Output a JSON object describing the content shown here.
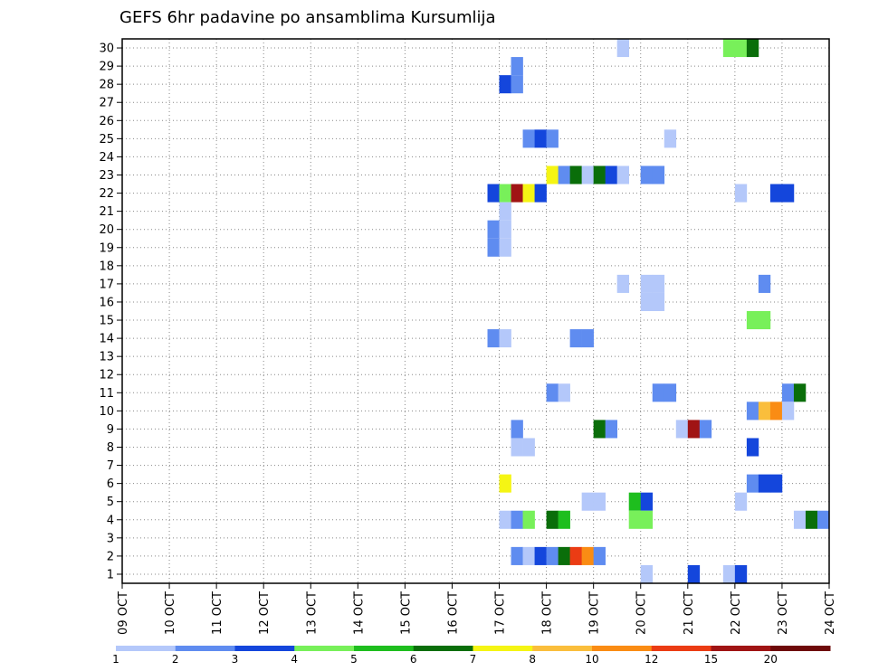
{
  "chart_data": {
    "type": "heatmap",
    "title": "GEFS 6hr padavine po ansamblima Kursumlija",
    "xlabel": "",
    "ylabel": "",
    "x_ticks": [
      "09 OCT",
      "10 OCT",
      "11 OCT",
      "12 OCT",
      "13 OCT",
      "14 OCT",
      "15 OCT",
      "16 OCT",
      "17 OCT",
      "18 OCT",
      "19 OCT",
      "20 OCT",
      "21 OCT",
      "22 OCT",
      "23 OCT",
      "24 OCT"
    ],
    "x_range_days": [
      9,
      24
    ],
    "step_hours": 6,
    "ensemble_members": [
      "1",
      "2",
      "3",
      "4",
      "5",
      "6",
      "7",
      "8",
      "9",
      "10",
      "11",
      "12",
      "13",
      "14",
      "15",
      "16",
      "17",
      "18",
      "19",
      "20",
      "21",
      "22",
      "23",
      "24",
      "25",
      "26",
      "27",
      "28",
      "29",
      "30"
    ],
    "ylim": [
      0.5,
      30.5
    ],
    "grid": true,
    "legend": {
      "placement": "bottom",
      "labels": [
        "1",
        "2",
        "3",
        "4",
        "5",
        "6",
        "7",
        "8",
        "10",
        "12",
        "15",
        "20"
      ],
      "colors": [
        "#b4c8fa",
        "#5f8cf0",
        "#1446dc",
        "#78f05a",
        "#1ebe1e",
        "#0a6e0a",
        "#f5f514",
        "#fabe3c",
        "#fa8c14",
        "#eb3c14",
        "#a01414",
        "#6e0a0a"
      ]
    },
    "cells": [
      {
        "member": 30,
        "day": 19.5,
        "value": 1
      },
      {
        "member": 30,
        "day": 21.75,
        "value": 4
      },
      {
        "member": 30,
        "day": 22,
        "value": 4
      },
      {
        "member": 30,
        "day": 22.25,
        "value": 6
      },
      {
        "member": 29,
        "day": 17.25,
        "value": 2
      },
      {
        "member": 28,
        "day": 17,
        "value": 3
      },
      {
        "member": 28,
        "day": 17.25,
        "value": 2
      },
      {
        "member": 25,
        "day": 17.5,
        "value": 2
      },
      {
        "member": 25,
        "day": 17.75,
        "value": 3
      },
      {
        "member": 25,
        "day": 18,
        "value": 2
      },
      {
        "member": 25,
        "day": 20.5,
        "value": 1
      },
      {
        "member": 23,
        "day": 18,
        "value": 7
      },
      {
        "member": 23,
        "day": 18.25,
        "value": 2
      },
      {
        "member": 23,
        "day": 18.5,
        "value": 6
      },
      {
        "member": 23,
        "day": 18.75,
        "value": 1
      },
      {
        "member": 23,
        "day": 19,
        "value": 6
      },
      {
        "member": 23,
        "day": 19.25,
        "value": 3
      },
      {
        "member": 23,
        "day": 19.5,
        "value": 1
      },
      {
        "member": 23,
        "day": 20,
        "value": 2
      },
      {
        "member": 23,
        "day": 20.25,
        "value": 2
      },
      {
        "member": 22,
        "day": 16.75,
        "value": 3
      },
      {
        "member": 22,
        "day": 17,
        "value": 4
      },
      {
        "member": 22,
        "day": 17.25,
        "value": 15
      },
      {
        "member": 22,
        "day": 17.5,
        "value": 7
      },
      {
        "member": 22,
        "day": 17.75,
        "value": 3
      },
      {
        "member": 22,
        "day": 22,
        "value": 1
      },
      {
        "member": 22,
        "day": 22.75,
        "value": 3
      },
      {
        "member": 22,
        "day": 23,
        "value": 3
      },
      {
        "member": 21,
        "day": 17,
        "value": 1
      },
      {
        "member": 20,
        "day": 16.75,
        "value": 2
      },
      {
        "member": 20,
        "day": 17,
        "value": 1
      },
      {
        "member": 19,
        "day": 16.75,
        "value": 2
      },
      {
        "member": 19,
        "day": 17,
        "value": 1
      },
      {
        "member": 17,
        "day": 19.5,
        "value": 1
      },
      {
        "member": 17,
        "day": 20,
        "value": 1
      },
      {
        "member": 17,
        "day": 20.25,
        "value": 1
      },
      {
        "member": 17,
        "day": 22.5,
        "value": 2
      },
      {
        "member": 16,
        "day": 20,
        "value": 1
      },
      {
        "member": 16,
        "day": 20.25,
        "value": 1
      },
      {
        "member": 15,
        "day": 22.25,
        "value": 4
      },
      {
        "member": 15,
        "day": 22.5,
        "value": 4
      },
      {
        "member": 14,
        "day": 16.75,
        "value": 2
      },
      {
        "member": 14,
        "day": 17,
        "value": 1
      },
      {
        "member": 14,
        "day": 18.5,
        "value": 2
      },
      {
        "member": 14,
        "day": 18.75,
        "value": 2
      },
      {
        "member": 11,
        "day": 18,
        "value": 2
      },
      {
        "member": 11,
        "day": 18.25,
        "value": 1
      },
      {
        "member": 11,
        "day": 20.25,
        "value": 2
      },
      {
        "member": 11,
        "day": 20.5,
        "value": 2
      },
      {
        "member": 11,
        "day": 23,
        "value": 2
      },
      {
        "member": 11,
        "day": 23.25,
        "value": 6
      },
      {
        "member": 10,
        "day": 22.25,
        "value": 2
      },
      {
        "member": 10,
        "day": 22.5,
        "value": 8
      },
      {
        "member": 10,
        "day": 22.75,
        "value": 10
      },
      {
        "member": 10,
        "day": 23,
        "value": 1
      },
      {
        "member": 9,
        "day": 17.25,
        "value": 2
      },
      {
        "member": 9,
        "day": 19,
        "value": 6
      },
      {
        "member": 9,
        "day": 19.25,
        "value": 2
      },
      {
        "member": 9,
        "day": 20.75,
        "value": 1
      },
      {
        "member": 9,
        "day": 21,
        "value": 15
      },
      {
        "member": 9,
        "day": 21.25,
        "value": 2
      },
      {
        "member": 8,
        "day": 17.25,
        "value": 1
      },
      {
        "member": 8,
        "day": 17.5,
        "value": 1
      },
      {
        "member": 8,
        "day": 22.25,
        "value": 3
      },
      {
        "member": 6,
        "day": 17,
        "value": 7
      },
      {
        "member": 6,
        "day": 22.25,
        "value": 2
      },
      {
        "member": 6,
        "day": 22.5,
        "value": 3
      },
      {
        "member": 6,
        "day": 22.75,
        "value": 3
      },
      {
        "member": 5,
        "day": 18.75,
        "value": 1
      },
      {
        "member": 5,
        "day": 19,
        "value": 1
      },
      {
        "member": 5,
        "day": 19.75,
        "value": 5
      },
      {
        "member": 5,
        "day": 20,
        "value": 3
      },
      {
        "member": 5,
        "day": 22,
        "value": 1
      },
      {
        "member": 4,
        "day": 17,
        "value": 1
      },
      {
        "member": 4,
        "day": 17.25,
        "value": 2
      },
      {
        "member": 4,
        "day": 17.5,
        "value": 4
      },
      {
        "member": 4,
        "day": 18,
        "value": 6
      },
      {
        "member": 4,
        "day": 18.25,
        "value": 5
      },
      {
        "member": 4,
        "day": 19.75,
        "value": 4
      },
      {
        "member": 4,
        "day": 20,
        "value": 4
      },
      {
        "member": 4,
        "day": 23.25,
        "value": 1
      },
      {
        "member": 4,
        "day": 23.5,
        "value": 6
      },
      {
        "member": 4,
        "day": 23.75,
        "value": 2
      },
      {
        "member": 2,
        "day": 17.25,
        "value": 2
      },
      {
        "member": 2,
        "day": 17.5,
        "value": 1
      },
      {
        "member": 2,
        "day": 17.75,
        "value": 3
      },
      {
        "member": 2,
        "day": 18,
        "value": 2
      },
      {
        "member": 2,
        "day": 18.25,
        "value": 6
      },
      {
        "member": 2,
        "day": 18.5,
        "value": 12
      },
      {
        "member": 2,
        "day": 18.75,
        "value": 10
      },
      {
        "member": 2,
        "day": 19,
        "value": 2
      },
      {
        "member": 1,
        "day": 20,
        "value": 1
      },
      {
        "member": 1,
        "day": 21,
        "value": 3
      },
      {
        "member": 1,
        "day": 21.75,
        "value": 1
      },
      {
        "member": 1,
        "day": 22,
        "value": 3
      }
    ]
  }
}
